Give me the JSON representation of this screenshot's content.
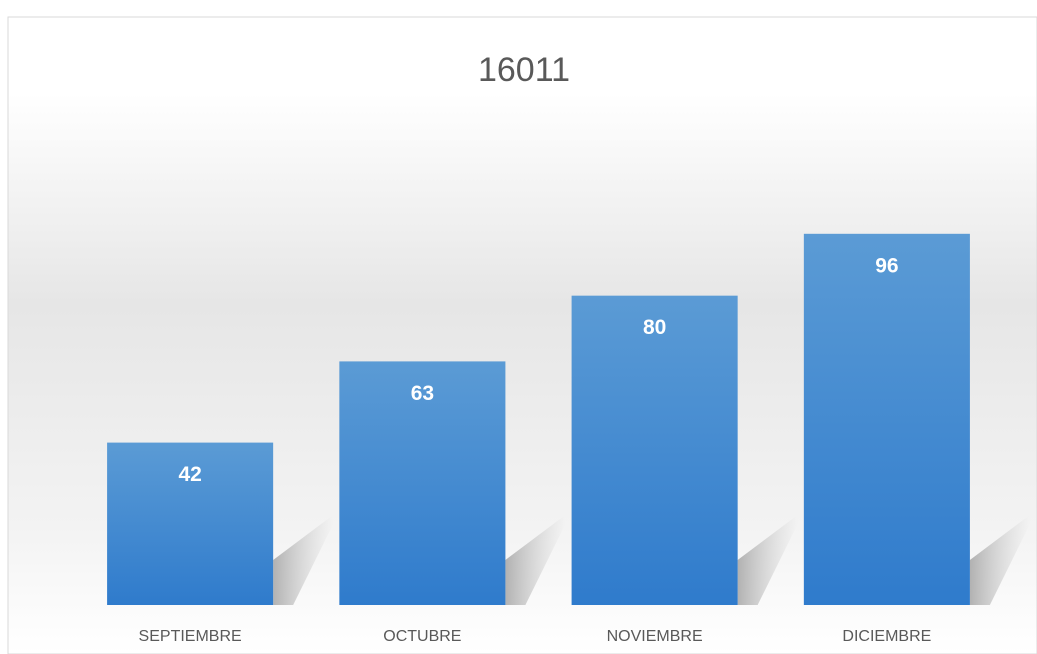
{
  "chart_data": {
    "type": "bar",
    "title": "16011",
    "categories": [
      "SEPTIEMBRE",
      "OCTUBRE",
      "NOVIEMBRE",
      "DICIEMBRE"
    ],
    "values": [
      42,
      63,
      80,
      96
    ],
    "color": "#4a8ed6",
    "ylim": [
      0,
      120
    ],
    "data_labels": true
  }
}
